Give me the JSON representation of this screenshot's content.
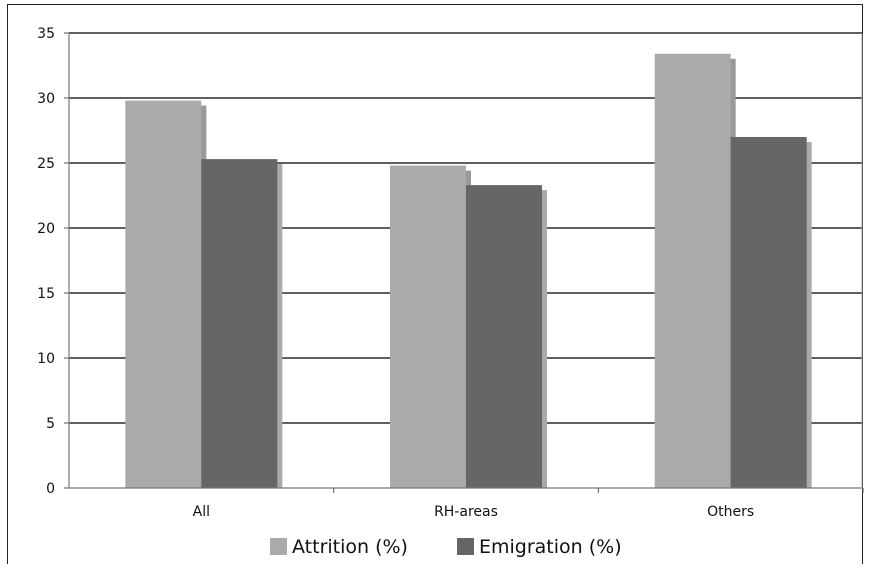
{
  "chart_data": {
    "type": "bar",
    "categories": [
      "All",
      "RH-areas",
      "Others"
    ],
    "series": [
      {
        "name": "Attrition (%)",
        "values": [
          29.8,
          24.8,
          33.4
        ],
        "color": "#aaaaaa",
        "shadow": "#999999"
      },
      {
        "name": "Emigration (%)",
        "values": [
          25.3,
          23.3,
          27.0
        ],
        "color": "#666666",
        "shadow": "#aaaaaa"
      }
    ],
    "y_ticks": [
      "0",
      "5",
      "10",
      "15",
      "20",
      "25",
      "30",
      "35"
    ],
    "ylim": [
      0,
      35
    ],
    "grid": true,
    "legend_position": "bottom"
  }
}
